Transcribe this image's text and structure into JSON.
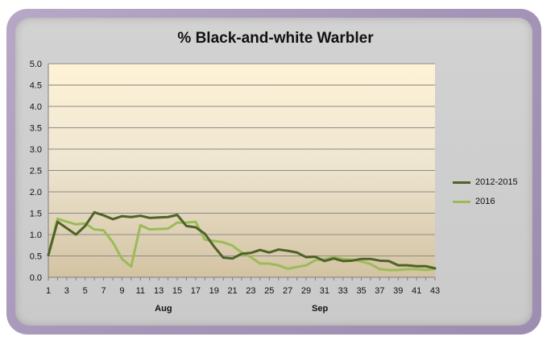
{
  "chart_data": {
    "type": "line",
    "title": "% Black-and-white Warbler",
    "xlabel": "",
    "ylabel": "",
    "ylim": [
      0,
      5
    ],
    "yticks": [
      "0.0",
      "0.5",
      "1.0",
      "1.5",
      "2.0",
      "2.5",
      "3.0",
      "3.5",
      "4.0",
      "4.5",
      "5.0"
    ],
    "xlim": [
      1,
      43
    ],
    "xticks": [
      "1",
      "3",
      "5",
      "7",
      "9",
      "11",
      "13",
      "15",
      "17",
      "19",
      "21",
      "23",
      "25",
      "27",
      "29",
      "31",
      "33",
      "35",
      "37",
      "39",
      "41",
      "43"
    ],
    "month_labels": [
      {
        "label": "Aug",
        "at": 13.5
      },
      {
        "label": "Sep",
        "at": 30.5
      }
    ],
    "grid": true,
    "legend_position": "right",
    "x": [
      1,
      2,
      3,
      4,
      5,
      6,
      7,
      8,
      9,
      10,
      11,
      12,
      13,
      14,
      15,
      16,
      17,
      18,
      19,
      20,
      21,
      22,
      23,
      24,
      25,
      26,
      27,
      28,
      29,
      30,
      31,
      32,
      33,
      34,
      35,
      36,
      37,
      38,
      39,
      40,
      41,
      42,
      43
    ],
    "series": [
      {
        "name": "2012-2015",
        "color": "#4f6228",
        "values": [
          0.52,
          1.3,
          1.15,
          1.0,
          1.2,
          1.52,
          1.45,
          1.36,
          1.43,
          1.41,
          1.44,
          1.39,
          1.4,
          1.41,
          1.46,
          1.2,
          1.17,
          1.02,
          0.72,
          0.46,
          0.44,
          0.55,
          0.57,
          0.64,
          0.58,
          0.65,
          0.62,
          0.58,
          0.47,
          0.48,
          0.38,
          0.44,
          0.38,
          0.39,
          0.43,
          0.43,
          0.39,
          0.38,
          0.28,
          0.28,
          0.26,
          0.26,
          0.21
        ]
      },
      {
        "name": "2016",
        "color": "#9bbb59",
        "values": [
          0.52,
          1.37,
          1.3,
          1.24,
          1.26,
          1.12,
          1.1,
          0.82,
          0.43,
          0.25,
          1.22,
          1.12,
          1.13,
          1.14,
          1.28,
          1.28,
          1.3,
          0.88,
          0.85,
          0.82,
          0.74,
          0.58,
          0.47,
          0.32,
          0.32,
          0.28,
          0.2,
          0.24,
          0.28,
          0.4,
          0.42,
          0.47,
          0.43,
          0.41,
          0.37,
          0.31,
          0.19,
          0.17,
          0.17,
          0.19,
          0.19,
          0.17,
          0.2
        ]
      }
    ]
  }
}
